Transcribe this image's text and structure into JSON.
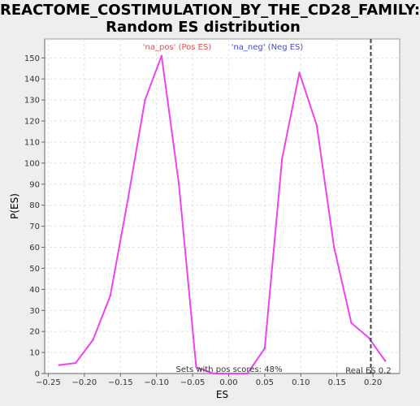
{
  "chart_data": {
    "type": "line",
    "title_line1": "REACTOME_COSTIMULATION_BY_THE_CD28_FAMILY:",
    "title_line2": "Random ES distribution",
    "xlabel": "ES",
    "ylabel": "P(ES)",
    "xlim": [
      -0.255,
      0.237
    ],
    "ylim": [
      0,
      159
    ],
    "x_ticks": [
      -0.25,
      -0.2,
      -0.15,
      -0.1,
      -0.05,
      0.0,
      0.05,
      0.1,
      0.15,
      0.2
    ],
    "x_tick_labels": [
      "−0.25",
      "−0.20",
      "−0.15",
      "−0.10",
      "−0.05",
      "0.00",
      "0.05",
      "0.10",
      "0.15",
      "0.20"
    ],
    "y_ticks": [
      0,
      10,
      20,
      30,
      40,
      50,
      60,
      70,
      80,
      90,
      100,
      110,
      120,
      130,
      140,
      150
    ],
    "grid": true,
    "legend": [
      {
        "label": "'na_pos' (Pos ES)",
        "color": "#e05050"
      },
      {
        "label": "'na_neg' (Neg ES)",
        "color": "#4a4acc"
      }
    ],
    "series": [
      {
        "color": "#ee44ee",
        "x": [
          -0.235,
          -0.212,
          -0.188,
          -0.164,
          -0.14,
          -0.116,
          -0.093,
          -0.069,
          -0.045,
          -0.021,
          0.003,
          0.026,
          0.05,
          0.074,
          0.098,
          0.122,
          0.146,
          0.17,
          0.194,
          0.217
        ],
        "values": [
          4,
          5,
          16,
          37,
          82,
          130,
          151,
          90,
          3,
          0,
          0,
          0,
          12,
          102,
          143,
          118,
          60,
          24,
          17,
          6
        ]
      }
    ],
    "real_es": {
      "value": 0.197,
      "label": "Real ES 0.2"
    },
    "annotation": "Sets with pos scores: 48%"
  }
}
